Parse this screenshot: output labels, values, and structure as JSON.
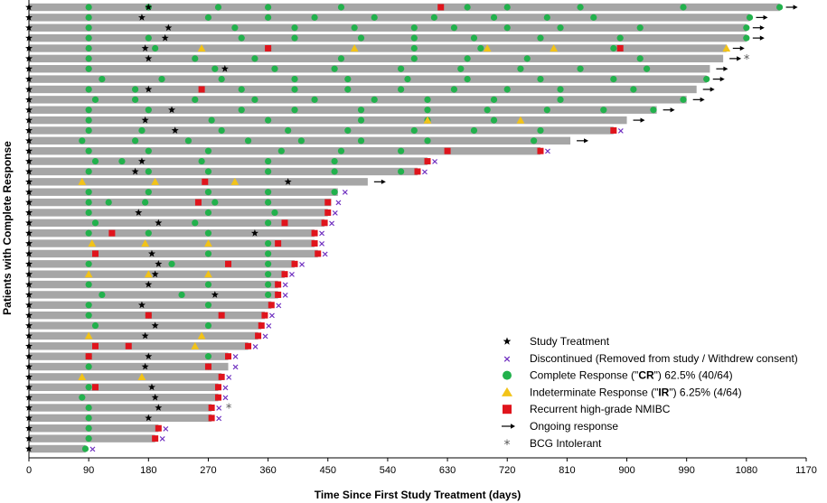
{
  "chart_data": {
    "type": "swimmer",
    "title": "",
    "xlabel": "Time Since First Study Treatment (days)",
    "ylabel": "Patients with Complete Response",
    "xlim": [
      0,
      1170
    ],
    "xticks": [
      0,
      90,
      180,
      270,
      360,
      450,
      540,
      630,
      720,
      810,
      900,
      990,
      1080,
      1170
    ],
    "grid": false,
    "legend_position": "bottom-right",
    "colors": {
      "bar": "#a6a6a6",
      "cr": "#22b14c",
      "ir": "#f2c318",
      "recurrence": "#e0141c",
      "discontinued": "#7030c0",
      "study_treatment": "#000000",
      "ongoing": "#000000",
      "bcg_intolerant": "#555555"
    },
    "legend": [
      {
        "key": "study_treatment",
        "label": "Study Treatment"
      },
      {
        "key": "discontinued",
        "label": "Discontinued (Removed from study / Withdrew consent)"
      },
      {
        "key": "cr",
        "label_parts": [
          {
            "t": "Complete Response (\"",
            "b": false
          },
          {
            "t": "CR",
            "b": true
          },
          {
            "t": "\") 62.5% (40/64)",
            "b": false
          }
        ]
      },
      {
        "key": "ir",
        "label_parts": [
          {
            "t": "Indeterminate Response (\"",
            "b": false
          },
          {
            "t": "IR",
            "b": true
          },
          {
            "t": "\") 6.25% (4/64)",
            "b": false
          }
        ]
      },
      {
        "key": "recurrence",
        "label": "Recurrent high-grade NMIBC"
      },
      {
        "key": "ongoing",
        "label": "Ongoing response"
      },
      {
        "key": "bcg_intolerant",
        "label": "BCG Intolerant"
      }
    ],
    "patients": [
      {
        "end": 1130,
        "st": [
          0,
          180
        ],
        "cr": [
          90,
          180,
          285,
          360,
          470,
          660,
          720,
          830,
          985,
          1130
        ],
        "rec": [
          620
        ],
        "ongoing": true
      },
      {
        "end": 1085,
        "st": [
          0,
          170
        ],
        "cr": [
          90,
          270,
          360,
          430,
          520,
          610,
          700,
          780,
          850,
          1085
        ],
        "ongoing": true
      },
      {
        "end": 1080,
        "st": [
          0,
          210
        ],
        "cr": [
          90,
          310,
          400,
          490,
          580,
          640,
          720,
          800,
          920,
          1080
        ],
        "ongoing": true
      },
      {
        "end": 1080,
        "st": [
          0,
          205
        ],
        "cr": [
          90,
          180,
          320,
          400,
          500,
          580,
          670,
          770,
          890,
          1080
        ],
        "ongoing": true
      },
      {
        "end": 1050,
        "st": [
          0,
          175
        ],
        "cr": [
          90,
          190,
          360,
          580,
          680,
          880
        ],
        "ir": [
          260,
          490,
          690,
          790,
          1050
        ],
        "rec": [
          360,
          890
        ],
        "ongoing": true
      },
      {
        "end": 1045,
        "st": [
          0,
          180
        ],
        "cr": [
          90,
          250,
          340,
          470,
          580,
          660,
          750,
          920
        ],
        "ongoing": true,
        "bcg": true
      },
      {
        "end": 1025,
        "st": [
          0,
          295
        ],
        "cr": [
          90,
          280,
          370,
          460,
          560,
          650,
          740,
          830,
          930
        ],
        "ongoing": true
      },
      {
        "end": 1020,
        "st": [
          0
        ],
        "cr": [
          110,
          200,
          290,
          400,
          480,
          570,
          660,
          770,
          880,
          1020
        ],
        "ongoing": true
      },
      {
        "end": 1005,
        "st": [
          0,
          180
        ],
        "cr": [
          90,
          160,
          320,
          400,
          480,
          560,
          640,
          720,
          800,
          910
        ],
        "rec": [
          260
        ],
        "ongoing": true
      },
      {
        "end": 990,
        "st": [
          0
        ],
        "cr": [
          100,
          160,
          250,
          340,
          430,
          520,
          600,
          700,
          800,
          985
        ],
        "ongoing": true
      },
      {
        "end": 945,
        "st": [
          0,
          215
        ],
        "cr": [
          90,
          180,
          320,
          400,
          500,
          600,
          690,
          780,
          865,
          940
        ],
        "ongoing": true
      },
      {
        "end": 900,
        "st": [
          0,
          175
        ],
        "cr": [
          90,
          275,
          360,
          500,
          600,
          700
        ],
        "ir": [
          600,
          740
        ],
        "ongoing": true
      },
      {
        "end": 880,
        "st": [
          0,
          220
        ],
        "cr": [
          90,
          170,
          290,
          390,
          480,
          580,
          670,
          770
        ],
        "rec": [
          880
        ],
        "disc": true
      },
      {
        "end": 815,
        "st": [
          0
        ],
        "cr": [
          80,
          160,
          240,
          330,
          410,
          500,
          600,
          760
        ],
        "ongoing": true
      },
      {
        "end": 770,
        "st": [
          0
        ],
        "cr": [
          90,
          180,
          270,
          380,
          470,
          560
        ],
        "rec": [
          630,
          770
        ],
        "disc": true
      },
      {
        "end": 600,
        "st": [
          0,
          170
        ],
        "cr": [
          100,
          140,
          260,
          360,
          460
        ],
        "rec": [
          600
        ],
        "disc": true
      },
      {
        "end": 585,
        "st": [
          0,
          160
        ],
        "cr": [
          90,
          180,
          270,
          360,
          460,
          560
        ],
        "rec": [
          585
        ],
        "disc": true
      },
      {
        "end": 510,
        "st": [
          0,
          390
        ],
        "ir": [
          80,
          190,
          310
        ],
        "rec": [
          265
        ],
        "ongoing": true
      },
      {
        "end": 465,
        "st": [
          0
        ],
        "cr": [
          90,
          180,
          270,
          360,
          460
        ],
        "disc": true
      },
      {
        "end": 455,
        "st": [
          0
        ],
        "cr": [
          90,
          120,
          175,
          280,
          360
        ],
        "rec": [
          255,
          450
        ],
        "disc": true
      },
      {
        "end": 450,
        "st": [
          0,
          165
        ],
        "cr": [
          90,
          270,
          370
        ],
        "rec": [
          450
        ],
        "disc": true
      },
      {
        "end": 445,
        "st": [
          0,
          195
        ],
        "cr": [
          100,
          250,
          360
        ],
        "rec": [
          385,
          445
        ],
        "disc": true
      },
      {
        "end": 430,
        "st": [
          0,
          340
        ],
        "cr": [
          90,
          180,
          270
        ],
        "rec": [
          125,
          430
        ],
        "disc": true
      },
      {
        "end": 430,
        "ir": [
          95,
          175,
          270
        ],
        "st": [
          0
        ],
        "cr": [
          360
        ],
        "rec": [
          375,
          430
        ],
        "disc": true
      },
      {
        "end": 435,
        "st": [
          0,
          185
        ],
        "cr": [
          100,
          270,
          360
        ],
        "rec": [
          100,
          435
        ],
        "disc": true
      },
      {
        "end": 400,
        "st": [
          0,
          195
        ],
        "cr": [
          90,
          215,
          360
        ],
        "rec": [
          300,
          400
        ],
        "disc": true
      },
      {
        "end": 385,
        "st": [
          0,
          190
        ],
        "ir": [
          90,
          180,
          270
        ],
        "cr": [
          360
        ],
        "rec": [
          385
        ],
        "disc": true
      },
      {
        "end": 375,
        "st": [
          0,
          180
        ],
        "cr": [
          90,
          270,
          360
        ],
        "rec": [
          375
        ],
        "disc": true
      },
      {
        "end": 375,
        "st": [
          0,
          280
        ],
        "cr": [
          110,
          230,
          360
        ],
        "rec": [
          375
        ],
        "disc": true
      },
      {
        "end": 365,
        "st": [
          0,
          170
        ],
        "cr": [
          90,
          270
        ],
        "rec": [
          365
        ],
        "disc": true
      },
      {
        "end": 355,
        "st": [
          0
        ],
        "cr": [
          90,
          180
        ],
        "rec": [
          180,
          290,
          355
        ],
        "disc": true
      },
      {
        "end": 350,
        "st": [
          0,
          190
        ],
        "cr": [
          100,
          270
        ],
        "rec": [
          350
        ],
        "disc": true
      },
      {
        "end": 345,
        "st": [
          0,
          175
        ],
        "ir": [
          90,
          260
        ],
        "rec": [
          345
        ],
        "disc": true
      },
      {
        "end": 330,
        "st": [
          0
        ],
        "ir": [
          250
        ],
        "rec": [
          100,
          150,
          330
        ],
        "disc": true
      },
      {
        "end": 300,
        "st": [
          0,
          180
        ],
        "cr": [
          90,
          270
        ],
        "rec": [
          90,
          300
        ],
        "disc": true
      },
      {
        "end": 300,
        "st": [
          0,
          175
        ],
        "cr": [
          90,
          270
        ],
        "rec": [
          270
        ],
        "disc": true
      },
      {
        "end": 290,
        "st": [
          0
        ],
        "ir": [
          80,
          170
        ],
        "rec": [
          290
        ],
        "disc": true
      },
      {
        "end": 285,
        "st": [
          0,
          185
        ],
        "cr": [
          90
        ],
        "rec": [
          100,
          285
        ],
        "disc": true
      },
      {
        "end": 285,
        "st": [
          0,
          190
        ],
        "cr": [
          80
        ],
        "rec": [
          285
        ],
        "disc": true
      },
      {
        "end": 275,
        "st": [
          0,
          195
        ],
        "cr": [
          90
        ],
        "rec": [
          275
        ],
        "disc": true,
        "bcg": true
      },
      {
        "end": 275,
        "st": [
          0,
          180
        ],
        "cr": [
          90
        ],
        "rec": [
          275
        ],
        "disc": true
      },
      {
        "end": 195,
        "st": [
          0
        ],
        "cr": [
          90
        ],
        "rec": [
          195
        ],
        "disc": true
      },
      {
        "end": 190,
        "st": [
          0
        ],
        "cr": [
          90
        ],
        "rec": [
          190
        ],
        "disc": true
      },
      {
        "end": 85,
        "st": [
          0
        ],
        "cr": [
          85
        ],
        "disc": true
      }
    ]
  }
}
